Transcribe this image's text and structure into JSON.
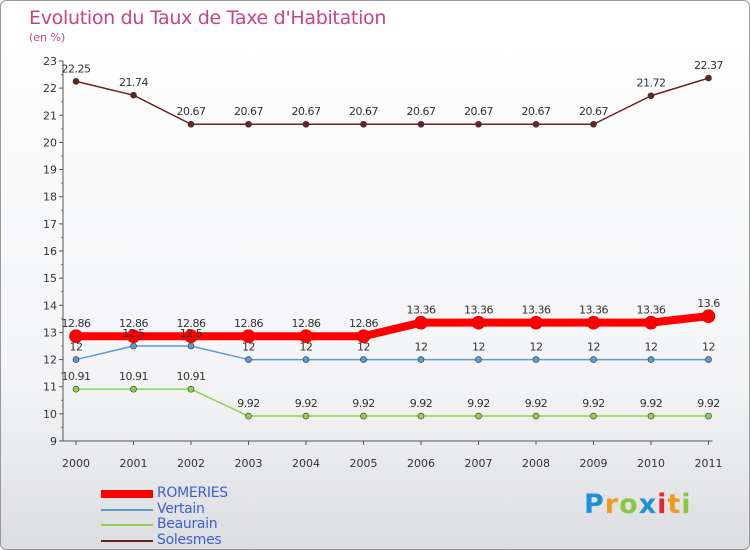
{
  "chart_data": {
    "type": "line",
    "title": "Evolution du Taux de Taxe d'Habitation",
    "subtitle": "(en %)",
    "x": [
      "2000",
      "2001",
      "2002",
      "2003",
      "2004",
      "2005",
      "2006",
      "2007",
      "2008",
      "2009",
      "2010",
      "2011"
    ],
    "ylim": [
      9,
      23
    ],
    "yticks": [
      "9",
      "10",
      "11",
      "12",
      "13",
      "14",
      "15",
      "16",
      "17",
      "18",
      "19",
      "20",
      "21",
      "22",
      "23"
    ],
    "legend_position": "bottom-left",
    "series": [
      {
        "name": "ROMERIES",
        "color": "#ff0000",
        "values": [
          12.86,
          12.86,
          12.86,
          12.86,
          12.86,
          12.86,
          13.36,
          13.36,
          13.36,
          13.36,
          13.36,
          13.6
        ],
        "labels": [
          "12.86",
          "12.86",
          "12.86",
          "12.86",
          "12.86",
          "12.86",
          "13.36",
          "13.36",
          "13.36",
          "13.36",
          "13.36",
          "13.6"
        ]
      },
      {
        "name": "Vertain",
        "color": "#5b9bd5",
        "values": [
          12,
          12.5,
          12.5,
          12,
          12,
          12,
          12,
          12,
          12,
          12,
          12,
          12
        ],
        "labels": [
          "12",
          "12.5",
          "12.5",
          "12",
          "12",
          "12",
          "12",
          "12",
          "12",
          "12",
          "12",
          "12"
        ]
      },
      {
        "name": "Beaurain",
        "color": "#8fd14f",
        "values": [
          10.91,
          10.91,
          10.91,
          9.92,
          9.92,
          9.92,
          9.92,
          9.92,
          9.92,
          9.92,
          9.92,
          9.92
        ],
        "labels": [
          "10.91",
          "10.91",
          "10.91",
          "9.92",
          "9.92",
          "9.92",
          "9.92",
          "9.92",
          "9.92",
          "9.92",
          "9.92",
          "9.92"
        ]
      },
      {
        "name": "Solesmes",
        "color": "#6b2222",
        "values": [
          22.25,
          21.74,
          20.67,
          20.67,
          20.67,
          20.67,
          20.67,
          20.67,
          20.67,
          20.67,
          21.72,
          22.37
        ],
        "labels": [
          "22.25",
          "21.74",
          "20.67",
          "20.67",
          "20.67",
          "20.67",
          "20.67",
          "20.67",
          "20.67",
          "20.67",
          "21.72",
          "22.37"
        ]
      }
    ]
  },
  "logo": {
    "letters": [
      "P",
      "r",
      "o",
      "x",
      "i",
      "t",
      "i"
    ],
    "colors": [
      "#1f8fd6",
      "#f29a1f",
      "#8cc63f",
      "#1f8fd6",
      "#e8262d",
      "#f29a1f",
      "#8cc63f"
    ]
  }
}
